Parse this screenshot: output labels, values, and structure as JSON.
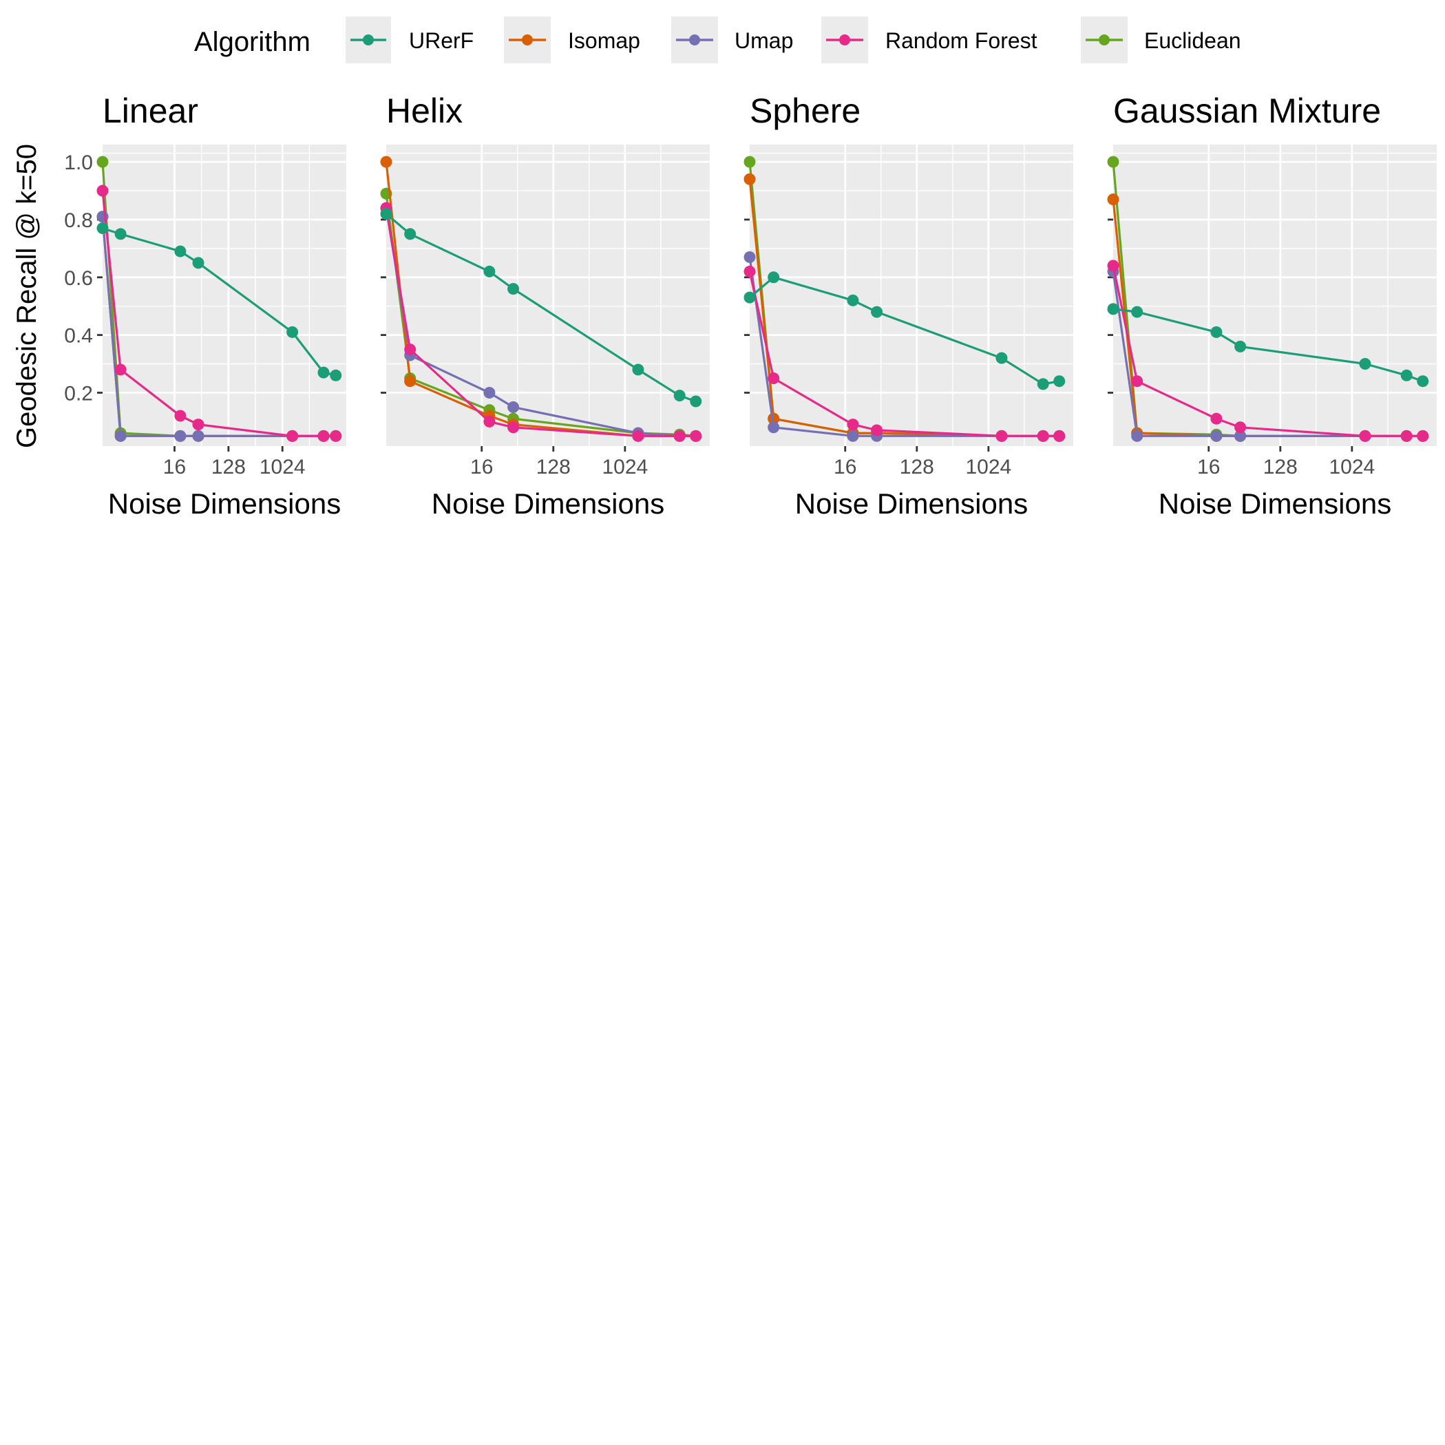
{
  "chart_data": {
    "type": "line",
    "legend": {
      "title": "Algorithm",
      "placement": "top"
    },
    "x_scale": "log2",
    "x_ticks": [
      16,
      128,
      1024
    ],
    "y_ticks": [
      0.2,
      0.4,
      0.6,
      0.8,
      1.0
    ],
    "y_tick_labels": [
      "0.2",
      "0.4",
      "0.6",
      "0.8",
      "1.0"
    ],
    "xlim": [
      1,
      12000
    ],
    "ylim": [
      0.015,
      1.06
    ],
    "ylabel": "Geodesic Recall @ k=50",
    "xlabel": "Noise Dimensions",
    "x": [
      1,
      2,
      20,
      40,
      1500,
      5000,
      8000
    ],
    "series_order": [
      "Euclidean",
      "Isomap",
      "Umap",
      "Random Forest",
      "URerF"
    ],
    "series_legend": [
      {
        "name": "URerF",
        "color": "#1B9E77"
      },
      {
        "name": "Isomap",
        "color": "#D95F02"
      },
      {
        "name": "Umap",
        "color": "#7570B3"
      },
      {
        "name": "Random Forest",
        "color": "#E7298A"
      },
      {
        "name": "Euclidean",
        "color": "#66A61E"
      }
    ],
    "panels": [
      {
        "title": "Linear",
        "series": {
          "URerF": [
            0.77,
            0.75,
            0.69,
            0.65,
            0.41,
            0.27,
            0.26
          ],
          "Isomap": [
            0.81,
            0.05,
            0.05,
            0.05,
            0.05,
            0.05,
            0.05
          ],
          "Umap": [
            0.81,
            0.05,
            0.05,
            0.05,
            0.05,
            0.05,
            0.05
          ],
          "Random Forest": [
            0.9,
            0.28,
            0.12,
            0.09,
            0.05,
            0.05,
            0.05
          ],
          "Euclidean": [
            1.0,
            0.06,
            0.05,
            0.05,
            0.05,
            0.05,
            0.05
          ]
        }
      },
      {
        "title": "Helix",
        "series": {
          "URerF": [
            0.82,
            0.75,
            0.62,
            0.56,
            0.28,
            0.19,
            0.17
          ],
          "Isomap": [
            1.0,
            0.24,
            0.12,
            0.09,
            0.05,
            0.05,
            0.05
          ],
          "Umap": [
            0.84,
            0.33,
            0.2,
            0.15,
            0.06,
            0.05,
            0.05
          ],
          "Random Forest": [
            0.84,
            0.35,
            0.1,
            0.08,
            0.05,
            0.05,
            0.05
          ],
          "Euclidean": [
            0.89,
            0.25,
            0.14,
            0.11,
            0.06,
            0.055,
            0.05
          ]
        }
      },
      {
        "title": "Sphere",
        "series": {
          "URerF": [
            0.53,
            0.6,
            0.52,
            0.48,
            0.32,
            0.23,
            0.24
          ],
          "Isomap": [
            0.94,
            0.11,
            0.06,
            0.06,
            0.05,
            0.05,
            0.05
          ],
          "Umap": [
            0.67,
            0.08,
            0.05,
            0.05,
            0.05,
            0.05,
            0.05
          ],
          "Random Forest": [
            0.62,
            0.25,
            0.09,
            0.07,
            0.05,
            0.05,
            0.05
          ],
          "Euclidean": [
            1.0,
            0.11,
            0.06,
            0.06,
            0.05,
            0.05,
            0.05
          ]
        }
      },
      {
        "title": "Gaussian Mixture",
        "series": {
          "URerF": [
            0.49,
            0.48,
            0.41,
            0.36,
            0.3,
            0.26,
            0.24
          ],
          "Isomap": [
            0.87,
            0.06,
            0.05,
            0.05,
            0.05,
            0.05,
            0.05
          ],
          "Umap": [
            0.62,
            0.05,
            0.05,
            0.05,
            0.05,
            0.05,
            0.05
          ],
          "Random Forest": [
            0.64,
            0.24,
            0.11,
            0.08,
            0.05,
            0.05,
            0.05
          ],
          "Euclidean": [
            1.0,
            0.06,
            0.055,
            0.05,
            0.05,
            0.05,
            0.05
          ]
        }
      }
    ]
  }
}
